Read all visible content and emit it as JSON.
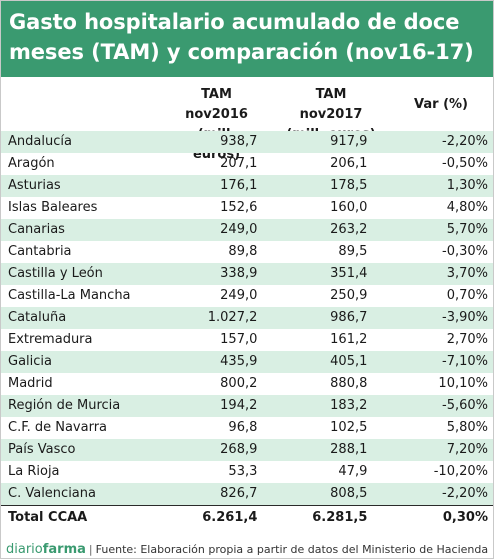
{
  "header": {
    "title_line1": "Gasto hospitalario acumulado de doce",
    "title_line2": "meses (TAM) y comparación (nov16-17)"
  },
  "columns": {
    "col1_line1": "TAM nov2016",
    "col1_line2": "(mill. euros)",
    "col2_line1": "TAM nov2017",
    "col2_line2": "(mill. euros)",
    "col3": "Var (%)"
  },
  "rows": [
    {
      "region": "Andalucía",
      "tam2016": "938,7",
      "tam2017": "917,9",
      "var": "-2,20%"
    },
    {
      "region": "Aragón",
      "tam2016": "207,1",
      "tam2017": "206,1",
      "var": "-0,50%"
    },
    {
      "region": "Asturias",
      "tam2016": "176,1",
      "tam2017": "178,5",
      "var": "1,30%"
    },
    {
      "region": "Islas Baleares",
      "tam2016": "152,6",
      "tam2017": "160,0",
      "var": "4,80%"
    },
    {
      "region": "Canarias",
      "tam2016": "249,0",
      "tam2017": "263,2",
      "var": "5,70%"
    },
    {
      "region": "Cantabria",
      "tam2016": "89,8",
      "tam2017": "89,5",
      "var": "-0,30%"
    },
    {
      "region": "Castilla y León",
      "tam2016": "338,9",
      "tam2017": "351,4",
      "var": "3,70%"
    },
    {
      "region": "Castilla-La Mancha",
      "tam2016": "249,0",
      "tam2017": "250,9",
      "var": "0,70%"
    },
    {
      "region": "Cataluña",
      "tam2016": "1.027,2",
      "tam2017": "986,7",
      "var": "-3,90%"
    },
    {
      "region": "Extremadura",
      "tam2016": "157,0",
      "tam2017": "161,2",
      "var": "2,70%"
    },
    {
      "region": "Galicia",
      "tam2016": "435,9",
      "tam2017": "405,1",
      "var": "-7,10%"
    },
    {
      "region": "Madrid",
      "tam2016": "800,2",
      "tam2017": "880,8",
      "var": "10,10%"
    },
    {
      "region": "Región de Murcia",
      "tam2016": "194,2",
      "tam2017": "183,2",
      "var": "-5,60%"
    },
    {
      "region": "C.F. de Navarra",
      "tam2016": "96,8",
      "tam2017": "102,5",
      "var": "5,80%"
    },
    {
      "region": "País Vasco",
      "tam2016": "268,9",
      "tam2017": "288,1",
      "var": "7,20%"
    },
    {
      "region": "La Rioja",
      "tam2016": "53,3",
      "tam2017": "47,9",
      "var": "-10,20%"
    },
    {
      "region": "C. Valenciana",
      "tam2016": "826,7",
      "tam2017": "808,5",
      "var": "-2,20%"
    }
  ],
  "total": {
    "region": "Total CCAA",
    "tam2016": "6.261,4",
    "tam2017": "6.281,5",
    "var": "0,30%"
  },
  "footer": {
    "brand_part1": "diario",
    "brand_part2": "farma",
    "separator": "|",
    "source": "Fuente: Elaboración propia a partir de datos del Ministerio de Hacienda"
  },
  "colors": {
    "header_bg": "#3a9a70",
    "stripe": "#d9efe3"
  }
}
